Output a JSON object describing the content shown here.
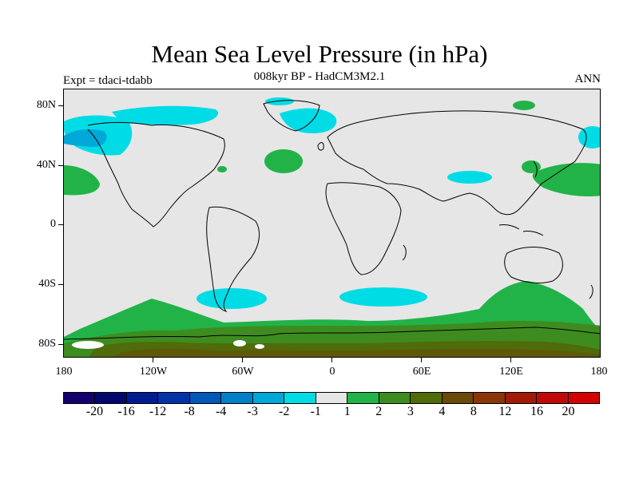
{
  "title": "Mean Sea Level Pressure (in hPa)",
  "subtitle": "008kyr BP - HadCM3M2.1",
  "left_label": "Expt = tdaci-tdabb",
  "right_label": "ANN",
  "lat_labels": [
    "80N",
    "40N",
    "0",
    "40S",
    "80S"
  ],
  "lon_labels": [
    "180",
    "120W",
    "60W",
    "0",
    "60E",
    "120E",
    "180"
  ],
  "colorbar": {
    "labels": [
      "-20",
      "-16",
      "-12",
      "-8",
      "-4",
      "-3",
      "-2",
      "-1",
      "1",
      "2",
      "3",
      "4",
      "8",
      "12",
      "16",
      "20"
    ],
    "colors": [
      "#14006e",
      "#00086e",
      "#001a94",
      "#0033a8",
      "#0058b8",
      "#0080c8",
      "#00a8d8",
      "#00dce6",
      "#e6e6e6",
      "#22b348",
      "#3e8c20",
      "#4f6b0a",
      "#6a4a08",
      "#8a3606",
      "#a01c06",
      "#c00a0a",
      "#d40000"
    ]
  },
  "chart_data": {
    "type": "heatmap",
    "title": "Mean Sea Level Pressure (in hPa)",
    "subtitle": "008kyr BP - HadCM3M2.1",
    "xlabel": "",
    "ylabel": "",
    "x_range": [
      -180,
      180
    ],
    "y_range": [
      -90,
      90
    ],
    "x_ticks": [
      "180",
      "120W",
      "60W",
      "0",
      "60E",
      "120E",
      "180"
    ],
    "y_ticks": [
      "80N",
      "40N",
      "0",
      "40S",
      "80S"
    ],
    "levels": [
      -20,
      -16,
      -12,
      -8,
      -4,
      -3,
      -2,
      -1,
      1,
      2,
      3,
      4,
      8,
      12,
      16,
      20
    ],
    "colors": {
      "neutral": "#e6e6e6",
      "neg_1_2": "#00dce6",
      "neg_2_3": "#00a8d8",
      "pos_1_2": "#22b348",
      "pos_2_3": "#3e8c20",
      "pos_3_4": "#4f6b0a"
    }
  }
}
